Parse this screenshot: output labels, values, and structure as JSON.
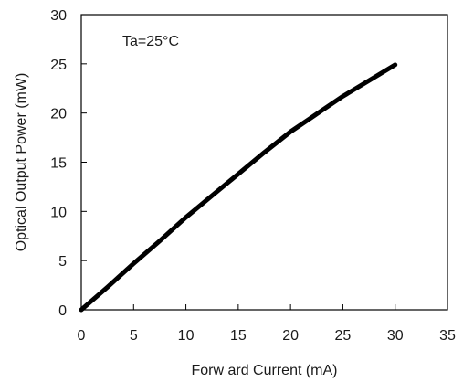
{
  "chart_data": {
    "type": "line",
    "xlabel": "Forw ard Current  (mA)",
    "ylabel": "Optical Output Power  (mW)",
    "xlim": [
      0,
      35
    ],
    "ylim": [
      0,
      30
    ],
    "x_ticks": [
      "0",
      "5",
      "10",
      "15",
      "20",
      "25",
      "30",
      "35"
    ],
    "y_ticks": [
      "0",
      "5",
      "10",
      "15",
      "20",
      "25",
      "30"
    ],
    "grid": false,
    "annotation": "Ta=25°C",
    "series": [
      {
        "color": "#000000",
        "x": [
          0,
          2.5,
          5,
          7.5,
          10,
          12.5,
          15,
          17.5,
          20,
          22.5,
          25,
          27.5,
          30
        ],
        "y": [
          0,
          2.3,
          4.7,
          7.0,
          9.4,
          11.6,
          13.8,
          16.0,
          18.1,
          19.9,
          21.7,
          23.3,
          24.9
        ]
      }
    ]
  }
}
